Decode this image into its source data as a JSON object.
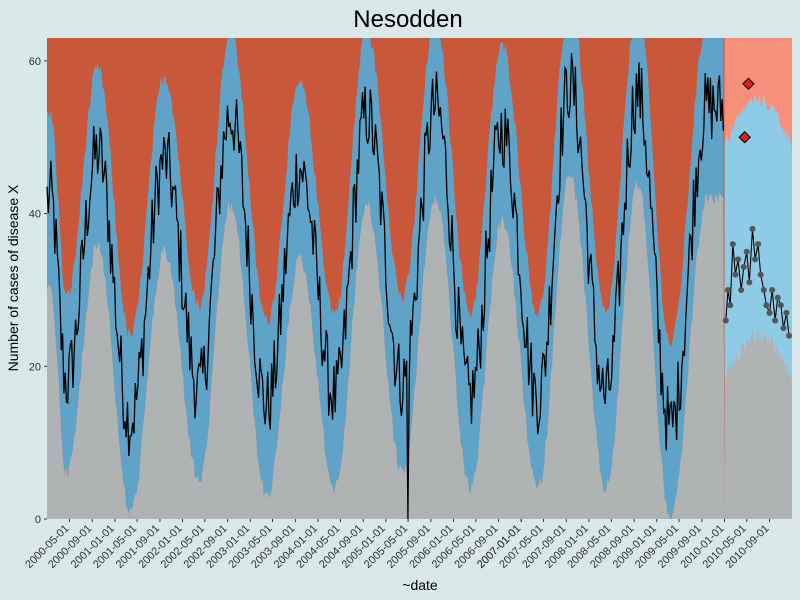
{
  "chart_data": {
    "type": "line",
    "title": "Nesodden",
    "xlabel": "~date",
    "ylabel": "Number of cases of disease X",
    "ylim": [
      0,
      63
    ],
    "yticks": [
      0,
      20,
      40,
      60
    ],
    "xlim": [
      "2000-01-01",
      "2010-12-31"
    ],
    "xticks": [
      "2000-05-01",
      "2000-09-01",
      "2001-01-01",
      "2001-05-01",
      "2001-09-01",
      "2002-01-01",
      "2002-05-01",
      "2002-09-01",
      "2003-01-01",
      "2003-05-01",
      "2003-09-01",
      "2004-01-01",
      "2004-05-01",
      "2004-09-01",
      "2005-01-01",
      "2005-05-01",
      "2005-09-01",
      "2006-01-01",
      "2006-05-01",
      "2006-09-01",
      "2007-01-01",
      "2007-05-01",
      "2007-09-01",
      "2007-01-01",
      "2008-01-01",
      "2008-05-01",
      "2008-09-01",
      "2009-01-01",
      "2009-05-01",
      "2009-09-01",
      "2010-01-01",
      "2010-05-01",
      "2010-09-01"
    ],
    "baseline_end": "2010-01-01",
    "colors": {
      "upper_region": "#c9573a",
      "upper_region_forecast": "#f7907a",
      "band": "#5fa3c8",
      "band_forecast": "#8dcbe6",
      "lower_region": "#b0b3b3",
      "line": "#000000",
      "forecast_points": "#555555",
      "alert_points": "#e02020"
    },
    "series": [
      {
        "peaks": [
          {
            "date": "2000-01-20",
            "value": 42
          },
          {
            "date": "2000-10-01",
            "value": 48
          },
          {
            "date": "2001-09-25",
            "value": 47
          },
          {
            "date": "2002-09-15",
            "value": 53
          },
          {
            "date": "2003-09-25",
            "value": 46
          },
          {
            "date": "2004-09-20",
            "value": 53
          },
          {
            "date": "2005-09-25",
            "value": 54
          },
          {
            "date": "2006-09-20",
            "value": 51
          },
          {
            "date": "2007-09-20",
            "value": 57
          },
          {
            "date": "2008-09-20",
            "value": 56
          },
          {
            "date": "2009-10-01",
            "value": 54
          }
        ],
        "troughs": [
          {
            "date": "2000-04-15",
            "value": 18
          },
          {
            "date": "2001-03-25",
            "value": 13
          },
          {
            "date": "2002-04-01",
            "value": 17
          },
          {
            "date": "2003-04-01",
            "value": 15
          },
          {
            "date": "2004-04-01",
            "value": 16
          },
          {
            "date": "2005-04-01",
            "value": 18
          },
          {
            "date": "2005-05-01",
            "value": 0
          },
          {
            "date": "2006-04-01",
            "value": 16
          },
          {
            "date": "2007-04-01",
            "value": 16
          },
          {
            "date": "2008-04-01",
            "value": 16
          },
          {
            "date": "2009-03-15",
            "value": 12
          }
        ]
      },
      {
        "forecast_points": [
          {
            "date": "2010-01-08",
            "value": 26
          },
          {
            "date": "2010-01-20",
            "value": 30
          },
          {
            "date": "2010-02-01",
            "value": 28
          },
          {
            "date": "2010-02-15",
            "value": 36
          },
          {
            "date": "2010-03-01",
            "value": 32
          },
          {
            "date": "2010-03-15",
            "value": 34
          },
          {
            "date": "2010-04-01",
            "value": 30
          },
          {
            "date": "2010-04-15",
            "value": 33
          },
          {
            "date": "2010-05-01",
            "value": 35
          },
          {
            "date": "2010-05-15",
            "value": 31
          },
          {
            "date": "2010-06-01",
            "value": 38
          },
          {
            "date": "2010-06-15",
            "value": 34
          },
          {
            "date": "2010-07-01",
            "value": 36
          },
          {
            "date": "2010-07-15",
            "value": 32
          },
          {
            "date": "2010-08-01",
            "value": 30
          },
          {
            "date": "2010-08-15",
            "value": 28
          },
          {
            "date": "2010-09-01",
            "value": 27
          },
          {
            "date": "2010-09-15",
            "value": 30
          },
          {
            "date": "2010-10-01",
            "value": 26
          },
          {
            "date": "2010-10-15",
            "value": 29
          },
          {
            "date": "2010-11-01",
            "value": 28
          },
          {
            "date": "2010-11-15",
            "value": 25
          },
          {
            "date": "2010-12-01",
            "value": 27
          },
          {
            "date": "2010-12-15",
            "value": 24
          }
        ]
      },
      {
        "alert_points": [
          {
            "date": "2010-04-20",
            "value": 50
          },
          {
            "date": "2010-05-10",
            "value": 57
          }
        ]
      }
    ]
  }
}
